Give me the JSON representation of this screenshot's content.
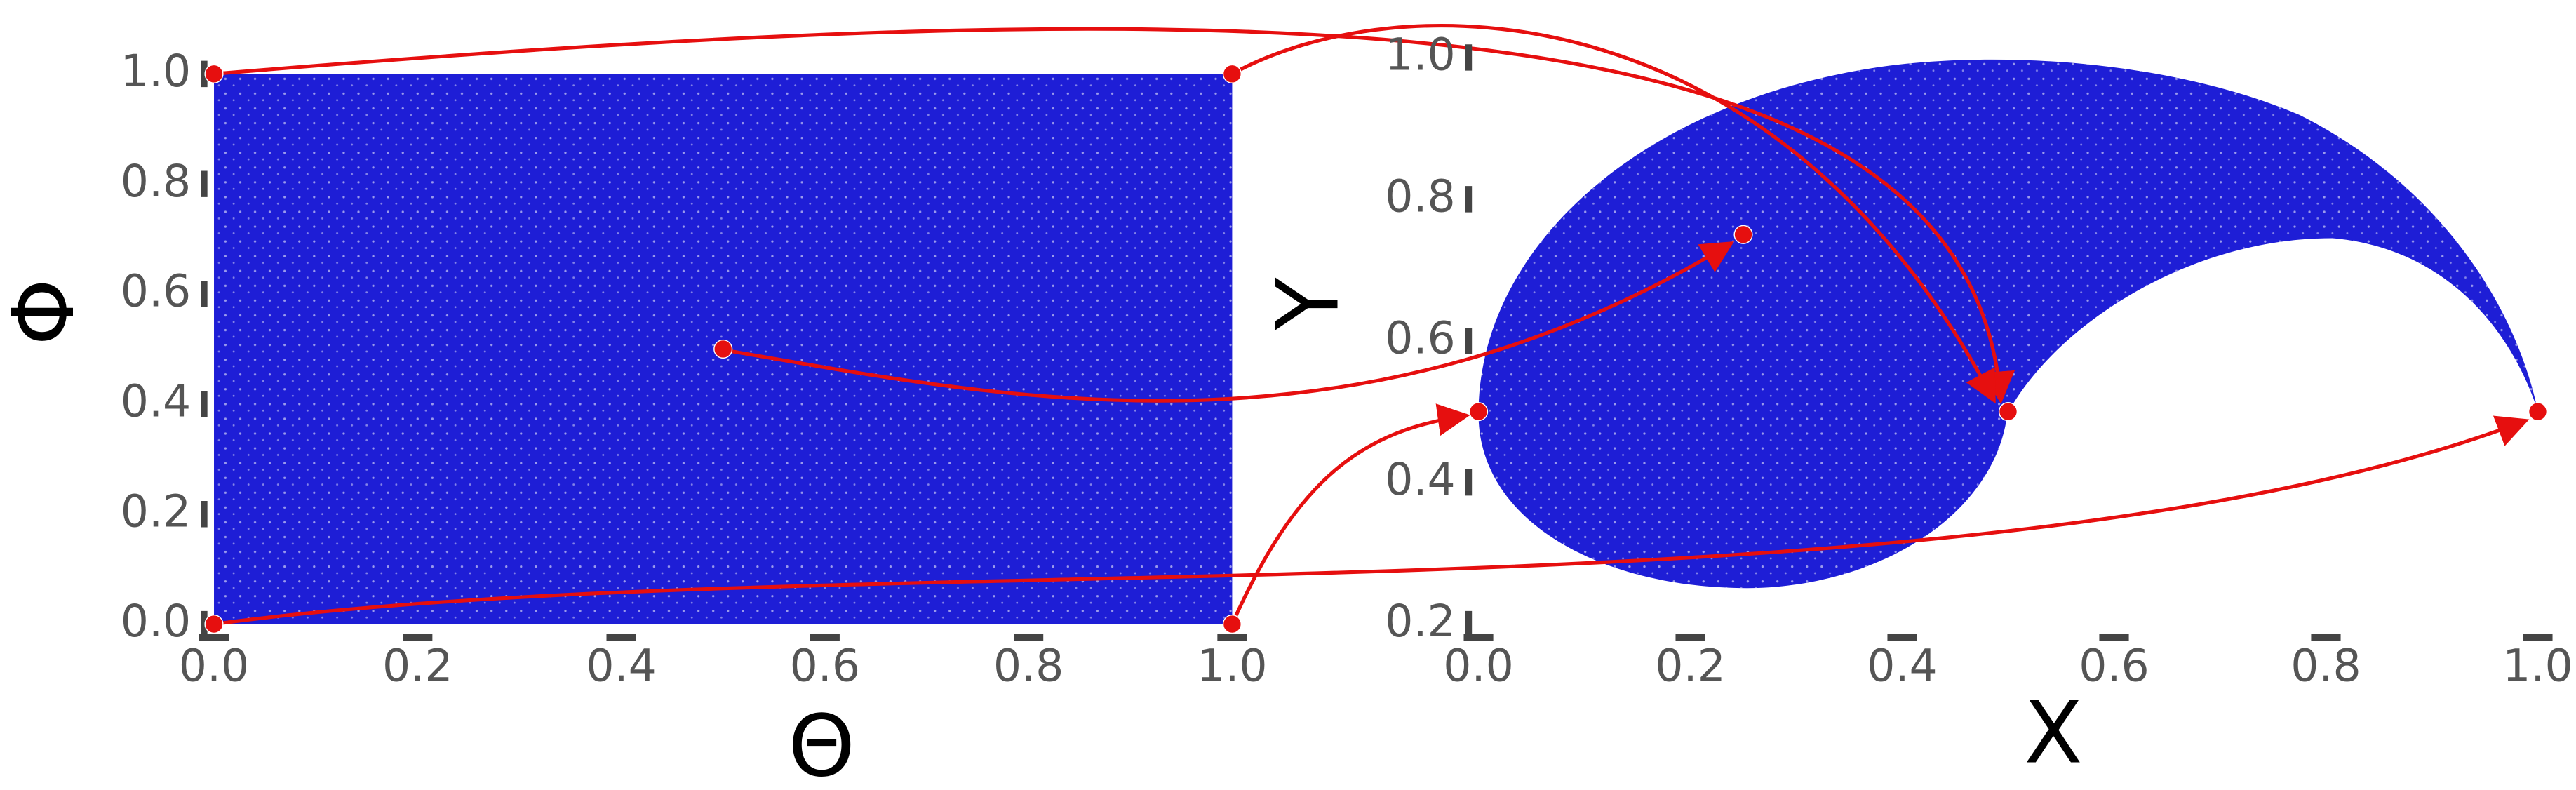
{
  "chart_data": [
    {
      "type": "scatter",
      "x_label": "Θ",
      "y_label": "Φ",
      "x": [
        0,
        1,
        0.5,
        0,
        1
      ],
      "y": [
        1,
        1,
        0.5,
        0,
        0
      ],
      "color": "#e60f0f",
      "cloud_color": "#1e1ed6",
      "xlim": [
        0,
        1
      ],
      "ylim": [
        0,
        1
      ],
      "xticks": [
        {
          "value": 0,
          "label": "0.0"
        },
        {
          "value": 0.2,
          "label": "0.2"
        },
        {
          "value": 0.4,
          "label": "0.4"
        },
        {
          "value": 0.6,
          "label": "0.6"
        },
        {
          "value": 0.8,
          "label": "0.8"
        },
        {
          "value": 1,
          "label": "1.0"
        }
      ],
      "yticks": [
        {
          "value": 0,
          "label": "0.0"
        },
        {
          "value": 0.2,
          "label": "0.2"
        },
        {
          "value": 0.4,
          "label": "0.4"
        },
        {
          "value": 0.6,
          "label": "0.6"
        },
        {
          "value": 0.8,
          "label": "0.8"
        },
        {
          "value": 1,
          "label": "1.0"
        }
      ]
    },
    {
      "type": "scatter",
      "x_label": "X",
      "y_label": "Y",
      "x": [
        0.5,
        0.5,
        0.25,
        1,
        0
      ],
      "y": [
        0.5,
        0.5,
        0.75,
        0.5,
        0.5
      ],
      "color": "#e60f0f",
      "cloud_color": "#1e1ed6",
      "xlim": [
        0,
        1
      ],
      "ylim": [
        0.2,
        1
      ],
      "xticks": [
        {
          "value": 0,
          "label": "0.0"
        },
        {
          "value": 0.2,
          "label": "0.2"
        },
        {
          "value": 0.4,
          "label": "0.4"
        },
        {
          "value": 0.6,
          "label": "0.6"
        },
        {
          "value": 0.8,
          "label": "0.8"
        },
        {
          "value": 1,
          "label": "1.0"
        }
      ],
      "yticks": [
        {
          "value": 0.2,
          "label": "0.2"
        },
        {
          "value": 0.4,
          "label": "0.4"
        },
        {
          "value": 0.6,
          "label": "0.6"
        },
        {
          "value": 0.8,
          "label": "0.8"
        },
        {
          "value": 1,
          "label": "1.0"
        }
      ]
    }
  ]
}
